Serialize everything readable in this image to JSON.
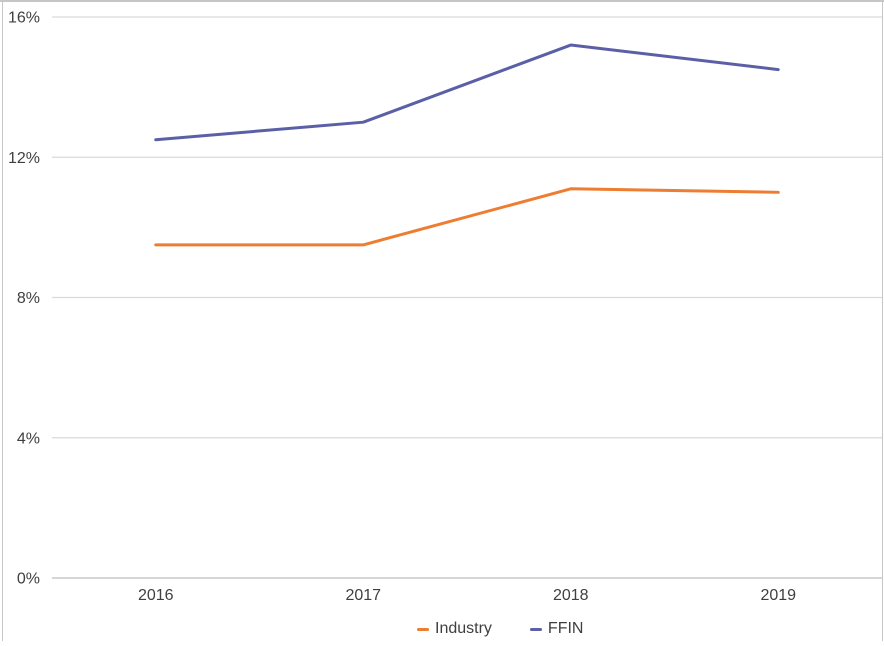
{
  "chart_data": {
    "type": "line",
    "title": "",
    "categories": [
      "2016",
      "2017",
      "2018",
      "2019"
    ],
    "series": [
      {
        "name": "Industry",
        "color": "#ED7D31",
        "values": [
          9.5,
          9.5,
          11.1,
          11.0
        ]
      },
      {
        "name": "FFIN",
        "color": "#5B5FA6",
        "values": [
          12.5,
          13.0,
          15.2,
          14.5
        ]
      }
    ],
    "ylim": [
      0,
      16
    ],
    "yticks": [
      {
        "value": 0,
        "label": "0%"
      },
      {
        "value": 4,
        "label": "4%"
      },
      {
        "value": 8,
        "label": "8%"
      },
      {
        "value": 12,
        "label": "12%"
      },
      {
        "value": 16,
        "label": "16%"
      }
    ],
    "grid": true,
    "legend_position": "bottom",
    "colors": {
      "gridline": "#D9D9D9",
      "axis_line": "#C9C9C9",
      "tick_text": "#3F3F3F",
      "frame_border": "#C6C6C6"
    }
  }
}
